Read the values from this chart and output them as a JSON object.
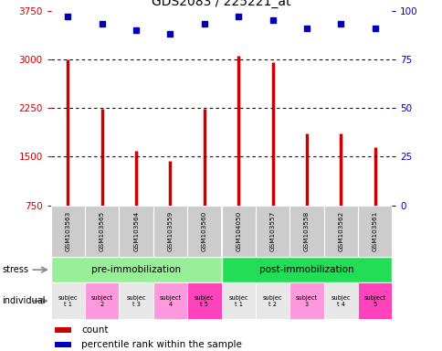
{
  "title": "GDS2083 / 225221_at",
  "samples": [
    "GSM103563",
    "GSM103565",
    "GSM103564",
    "GSM103559",
    "GSM103560",
    "GSM104050",
    "GSM103557",
    "GSM103558",
    "GSM103562",
    "GSM103561"
  ],
  "counts": [
    3000,
    2240,
    1590,
    1440,
    2240,
    3060,
    2960,
    1860,
    1860,
    1640
  ],
  "percentile_ranks": [
    97,
    93,
    90,
    88,
    93,
    97,
    95,
    91,
    93,
    91
  ],
  "ylim_left": [
    750,
    3750
  ],
  "ylim_right": [
    0,
    100
  ],
  "yticks_left": [
    750,
    1500,
    2250,
    3000,
    3750
  ],
  "yticks_right": [
    0,
    25,
    50,
    75,
    100
  ],
  "stress_groups": [
    {
      "label": "pre-immobilization",
      "start": 0,
      "end": 5,
      "color": "#99EE99"
    },
    {
      "label": "post-immobilization",
      "start": 5,
      "end": 10,
      "color": "#22DD55"
    }
  ],
  "individual_labels": [
    "subjec\nt 1",
    "subject\n2",
    "subjec\nt 3",
    "subject\n4",
    "subjec\nt 5",
    "subjec\nt 1",
    "subjec\nt 2",
    "subject\n3",
    "subjec\nt 4",
    "subject\n5"
  ],
  "individual_colors": [
    "#e8e8e8",
    "#FF99DD",
    "#e8e8e8",
    "#FF99DD",
    "#FF44BB",
    "#e8e8e8",
    "#e8e8e8",
    "#FF99DD",
    "#e8e8e8",
    "#FF44BB"
  ],
  "bar_color": "#CC0000",
  "marker_color": "#0000BB",
  "grid_color": "#000000",
  "bg_color": "#ffffff",
  "left_label_color": "#CC0000",
  "right_label_color": "#0000BB",
  "sample_bg": "#cccccc"
}
